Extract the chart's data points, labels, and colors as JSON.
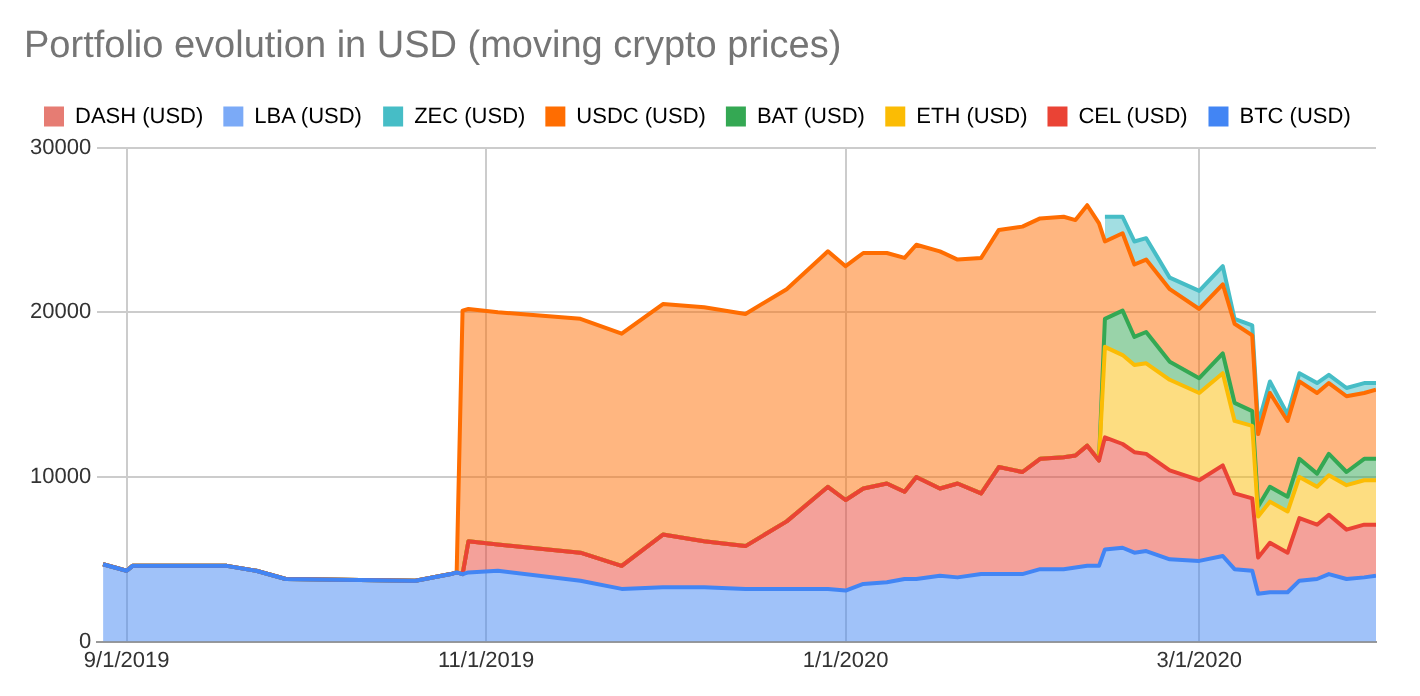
{
  "chart_data": {
    "type": "area",
    "title": "Portfolio evolution in USD (moving crypto prices)",
    "stacked": true,
    "legend": "top",
    "grid": true,
    "marker": "none",
    "x": [
      "2019-08-28",
      "2019-09-01",
      "2019-09-02",
      "2019-09-18",
      "2019-09-23",
      "2019-09-28",
      "2019-10-20",
      "2019-10-26",
      "2019-10-27",
      "2019-10-28",
      "2019-10-29",
      "2019-11-03",
      "2019-11-17",
      "2019-11-24",
      "2019-12-01",
      "2019-12-08",
      "2019-12-15",
      "2019-12-22",
      "2019-12-29",
      "2020-01-01",
      "2020-01-04",
      "2020-01-08",
      "2020-01-11",
      "2020-01-13",
      "2020-01-17",
      "2020-01-20",
      "2020-01-24",
      "2020-01-27",
      "2020-01-31",
      "2020-02-03",
      "2020-02-07",
      "2020-02-09",
      "2020-02-11",
      "2020-02-13",
      "2020-02-14",
      "2020-02-17",
      "2020-02-19",
      "2020-02-21",
      "2020-02-25",
      "2020-03-01",
      "2020-03-05",
      "2020-03-07",
      "2020-03-10",
      "2020-03-11",
      "2020-03-13",
      "2020-03-16",
      "2020-03-18",
      "2020-03-21",
      "2020-03-23",
      "2020-03-26",
      "2020-03-29",
      "2020-03-31"
    ],
    "series": [
      {
        "name": "BTC (USD)",
        "color": "#4285f4",
        "values": [
          4700,
          4300,
          4600,
          4600,
          4300,
          3800,
          3700,
          4100,
          4200,
          4100,
          4200,
          4300,
          3700,
          3200,
          3300,
          3300,
          3200,
          3200,
          3200,
          3100,
          3500,
          3600,
          3800,
          3800,
          4000,
          3900,
          4100,
          4100,
          4100,
          4400,
          4400,
          4500,
          4600,
          4600,
          5600,
          5700,
          5400,
          5500,
          5000,
          4900,
          5200,
          4400,
          4300,
          2900,
          3000,
          3000,
          3700,
          3800,
          4100,
          3800,
          3900,
          4000
        ]
      },
      {
        "name": "CEL (USD)",
        "color": "#ea4335",
        "values": [
          0,
          0,
          0,
          0,
          0,
          0,
          0,
          0,
          0,
          0,
          1900,
          1600,
          1700,
          1400,
          3200,
          2800,
          2600,
          4100,
          6200,
          5500,
          5800,
          6000,
          5300,
          6200,
          5300,
          5700,
          4900,
          6500,
          6200,
          6700,
          6800,
          6800,
          7300,
          6400,
          6800,
          6300,
          6100,
          5900,
          5400,
          4900,
          5500,
          4600,
          4400,
          2200,
          3000,
          2400,
          3800,
          3300,
          3600,
          3000,
          3200,
          3100
        ]
      },
      {
        "name": "ETH (USD)",
        "color": "#fbbc04",
        "values": [
          0,
          0,
          0,
          0,
          0,
          0,
          0,
          0,
          0,
          0,
          0,
          0,
          0,
          0,
          0,
          0,
          0,
          0,
          0,
          0,
          0,
          0,
          0,
          0,
          0,
          0,
          0,
          0,
          0,
          0,
          0,
          0,
          0,
          0,
          5500,
          5400,
          5300,
          5500,
          5500,
          5300,
          5600,
          4400,
          4400,
          2500,
          2500,
          2500,
          2500,
          2300,
          2400,
          2700,
          2700,
          2700
        ]
      },
      {
        "name": "BAT (USD)",
        "color": "#34a853",
        "values": [
          0,
          0,
          0,
          0,
          0,
          0,
          0,
          0,
          0,
          0,
          0,
          0,
          0,
          0,
          0,
          0,
          0,
          0,
          0,
          0,
          0,
          0,
          0,
          0,
          0,
          0,
          0,
          0,
          0,
          0,
          0,
          0,
          0,
          0,
          1700,
          2700,
          1700,
          1900,
          1100,
          900,
          1200,
          1100,
          900,
          600,
          900,
          900,
          1100,
          800,
          1300,
          800,
          1300,
          1300
        ]
      },
      {
        "name": "USDC (USD)",
        "color": "#ff6d01",
        "values": [
          0,
          0,
          0,
          0,
          0,
          0,
          0,
          0,
          0,
          16000,
          14100,
          14100,
          14200,
          14100,
          14000,
          14200,
          14100,
          14100,
          14300,
          14200,
          14300,
          14000,
          14200,
          14100,
          14400,
          13600,
          14300,
          14400,
          14900,
          14600,
          14600,
          14300,
          14600,
          14400,
          4700,
          4700,
          4400,
          4400,
          4400,
          4200,
          4200,
          4800,
          4600,
          4400,
          5700,
          4600,
          4700,
          4900,
          4300,
          4600,
          4000,
          4200
        ]
      },
      {
        "name": "ZEC (USD)",
        "color": "#46bdc6",
        "values": [
          null,
          null,
          null,
          null,
          null,
          null,
          null,
          null,
          null,
          null,
          null,
          null,
          null,
          null,
          null,
          null,
          null,
          null,
          null,
          null,
          null,
          null,
          null,
          null,
          null,
          null,
          null,
          null,
          null,
          null,
          null,
          null,
          null,
          null,
          1500,
          1000,
          1400,
          1300,
          700,
          1100,
          1100,
          300,
          600,
          600,
          700,
          400,
          500,
          600,
          500,
          500,
          600,
          400
        ]
      },
      {
        "name": "LBA (USD)",
        "color": "#7baaf7",
        "values": [
          null,
          null,
          null,
          null,
          null,
          null,
          null,
          null,
          null,
          null,
          null,
          null,
          null,
          null,
          null,
          null,
          null,
          null,
          null,
          null,
          null,
          null,
          null,
          null,
          null,
          null,
          null,
          null,
          null,
          null,
          null,
          null,
          null,
          null,
          null,
          null,
          null,
          null,
          null,
          null,
          null,
          null,
          null,
          null,
          null,
          null,
          null,
          null,
          null,
          null,
          null,
          null
        ]
      },
      {
        "name": "DASH (USD)",
        "color": "#e67c73",
        "values": [
          null,
          null,
          null,
          null,
          null,
          null,
          null,
          null,
          null,
          null,
          null,
          null,
          null,
          null,
          null,
          null,
          null,
          null,
          null,
          null,
          null,
          null,
          null,
          null,
          null,
          null,
          null,
          null,
          null,
          null,
          null,
          null,
          null,
          null,
          null,
          null,
          null,
          null,
          null,
          null,
          null,
          null,
          null,
          null,
          null,
          null,
          null,
          null,
          null,
          null,
          null,
          null
        ]
      }
    ],
    "xlim": [
      "2019-08-27",
      "2020-03-31"
    ],
    "xticks": [
      {
        "value": "2019-09-01",
        "label": "9/1/2019"
      },
      {
        "value": "2019-11-01",
        "label": "11/1/2019"
      },
      {
        "value": "2020-01-01",
        "label": "1/1/2020"
      },
      {
        "value": "2020-03-01",
        "label": "3/1/2020"
      }
    ],
    "ylim": [
      0,
      30000
    ],
    "yticks": [
      0,
      10000,
      20000,
      30000
    ]
  }
}
